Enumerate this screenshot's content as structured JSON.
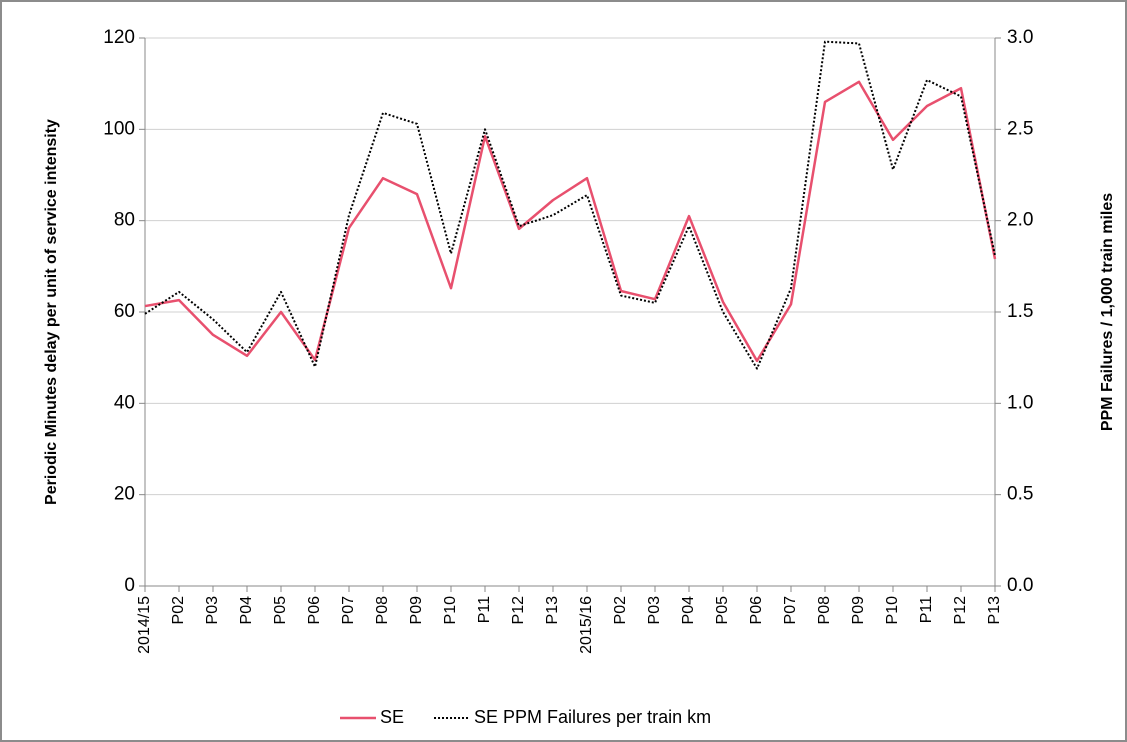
{
  "chart_data": {
    "type": "line",
    "ylabel": "Periodic Minutes delay per unit of service intensity",
    "y2label": "PPM Failures / 1,000 train miles",
    "categories": [
      "2014/15",
      "P02",
      "P03",
      "P04",
      "P05",
      "P06",
      "P07",
      "P08",
      "P09",
      "P10",
      "P11",
      "P12",
      "P13",
      "2015/16",
      "P02",
      "P03",
      "P04",
      "P05",
      "P06",
      "P07",
      "P08",
      "P09",
      "P10",
      "P11",
      "P12",
      "P13"
    ],
    "series": [
      {
        "name": "SE",
        "color": "#e8506e",
        "style": "solid",
        "values": [
          61.3,
          62.6,
          55,
          50.4,
          60,
          49.5,
          78.4,
          89.3,
          85.8,
          65.2,
          98.5,
          78.2,
          84.5,
          89.3,
          64.6,
          62.8,
          81,
          62.2,
          49.3,
          61.7,
          106,
          110.4,
          97.7,
          105.1,
          109,
          71.6
        ]
      },
      {
        "name": "SE PPM Failures per train km",
        "color": "#000000",
        "style": "dotted",
        "axis": "y2",
        "values": [
          1.49,
          1.61,
          1.46,
          1.28,
          1.61,
          1.2,
          2.03,
          2.59,
          2.53,
          1.82,
          2.5,
          1.97,
          2.03,
          2.14,
          1.59,
          1.55,
          1.97,
          1.5,
          1.19,
          1.63,
          2.98,
          2.97,
          2.28,
          2.77,
          2.68,
          1.81
        ]
      }
    ],
    "ylim": [
      0,
      120
    ],
    "yticks": [
      0,
      20,
      40,
      60,
      80,
      100,
      120
    ],
    "y2lim": [
      0,
      3
    ],
    "y2ticks": [
      {
        "value": 0,
        "label": "0.0"
      },
      {
        "value": 0.5,
        "label": "0.5"
      },
      {
        "value": 1,
        "label": "1.0"
      },
      {
        "value": 1.5,
        "label": "1.5"
      },
      {
        "value": 2,
        "label": "2.0"
      },
      {
        "value": 2.5,
        "label": "2.5"
      },
      {
        "value": 3,
        "label": "3.0"
      }
    ],
    "grid": true,
    "legend": "bottom"
  }
}
